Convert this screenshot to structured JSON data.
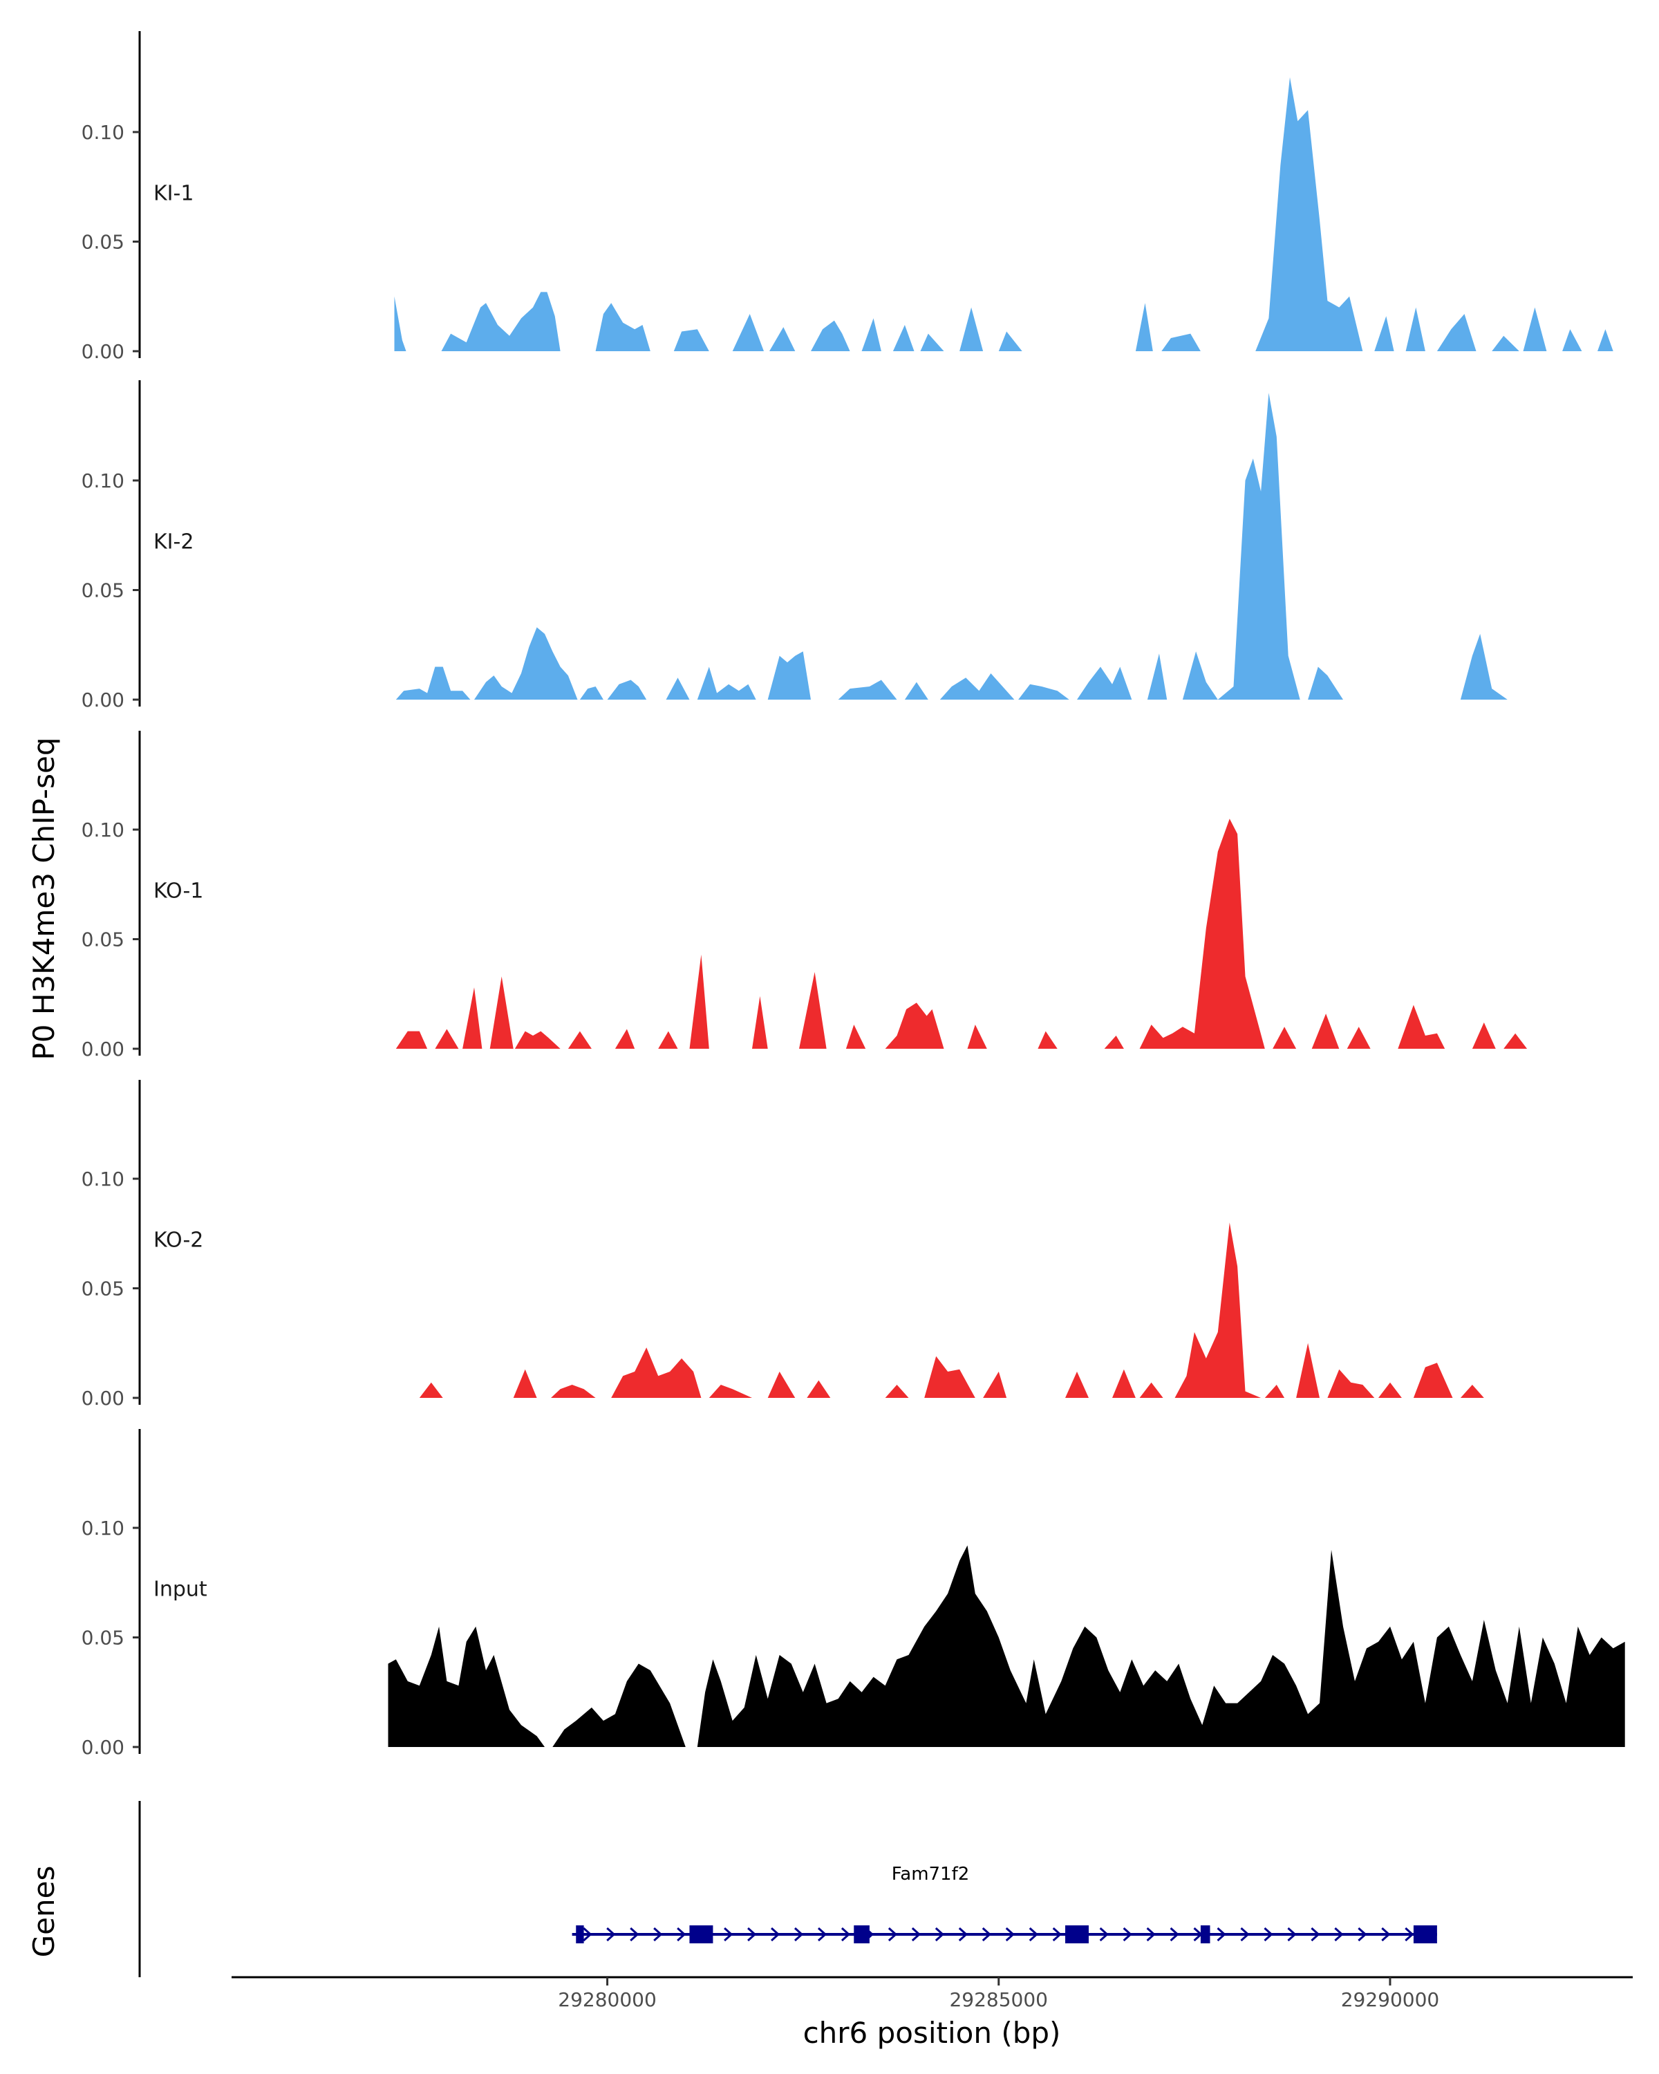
{
  "chart_data": {
    "type": "area",
    "title": "",
    "xlabel": "chr6 position (bp)",
    "ylabel": "P0 H3K4me3 ChIP-seq",
    "genes_label": "Genes",
    "xlim": [
      29275200,
      29293100
    ],
    "ylim": [
      0,
      0.14
    ],
    "x_ticks": [
      29280000,
      29285000,
      29290000
    ],
    "x_tick_labels": [
      "29280000",
      "29285000",
      "29290000"
    ],
    "y_ticks": [
      0.0,
      0.05,
      0.1
    ],
    "y_tick_labels": [
      "0.00",
      "0.05",
      "0.10"
    ],
    "tracks": [
      {
        "name": "KI-1",
        "color": "#5DADEC",
        "peaks": [
          [
            29277280,
            0,
            0.025
          ],
          [
            29277380,
            0,
            0.005
          ],
          [
            29277430,
            0,
            0.0
          ],
          [
            29277880,
            0,
            0.0
          ],
          [
            29278000,
            0,
            0.008
          ],
          [
            29278200,
            0,
            0.004
          ],
          [
            29278380,
            0,
            0.02
          ],
          [
            29278450,
            0,
            0.022
          ],
          [
            29278600,
            0,
            0.012
          ],
          [
            29278750,
            0,
            0.007
          ],
          [
            29278900,
            0,
            0.015
          ],
          [
            29279050,
            0,
            0.02
          ],
          [
            29279150,
            0,
            0.027
          ],
          [
            29279230,
            0,
            0.027
          ],
          [
            29279330,
            0,
            0.016
          ],
          [
            29279400,
            0,
            0.0
          ],
          [
            29279850,
            0,
            0.0
          ],
          [
            29279950,
            0,
            0.017
          ],
          [
            29280050,
            0,
            0.022
          ],
          [
            29280200,
            0,
            0.013
          ],
          [
            29280350,
            0,
            0.01
          ],
          [
            29280450,
            0,
            0.012
          ],
          [
            29280550,
            0,
            0.0
          ],
          [
            29280850,
            0,
            0.0
          ],
          [
            29280950,
            0,
            0.009
          ],
          [
            29281150,
            0,
            0.01
          ],
          [
            29281300,
            0,
            0.0
          ],
          [
            29281600,
            0,
            0.0
          ],
          [
            29281820,
            0,
            0.017
          ],
          [
            29282000,
            0,
            0.0
          ],
          [
            29282070,
            0,
            0.0
          ],
          [
            29282250,
            0,
            0.011
          ],
          [
            29282400,
            0,
            0.0
          ],
          [
            29282600,
            0,
            0.0
          ],
          [
            29282750,
            0,
            0.01
          ],
          [
            29282900,
            0,
            0.014
          ],
          [
            29283000,
            0,
            0.008
          ],
          [
            29283100,
            0,
            0.0
          ],
          [
            29283250,
            0,
            0.0
          ],
          [
            29283400,
            0,
            0.015
          ],
          [
            29283500,
            0,
            0.0
          ],
          [
            29283650,
            0,
            0.0
          ],
          [
            29283800,
            0,
            0.012
          ],
          [
            29283920,
            0,
            0.0
          ],
          [
            29284000,
            0,
            0.0
          ],
          [
            29284100,
            0,
            0.008
          ],
          [
            29284300,
            0,
            0.0
          ],
          [
            29284500,
            0,
            0.0
          ],
          [
            29284650,
            0,
            0.02
          ],
          [
            29284800,
            0,
            0.0
          ],
          [
            29285000,
            0,
            0.0
          ],
          [
            29285100,
            0,
            0.009
          ],
          [
            29285300,
            0,
            0.0
          ],
          [
            29286750,
            0,
            0.0
          ],
          [
            29286870,
            0,
            0.022
          ],
          [
            29286970,
            0,
            0.0
          ],
          [
            29287080,
            0,
            0.0
          ],
          [
            29287200,
            0,
            0.006
          ],
          [
            29287450,
            0,
            0.008
          ],
          [
            29287580,
            0,
            0.0
          ],
          [
            29288280,
            0,
            0.0
          ],
          [
            29288450,
            0,
            0.015
          ],
          [
            29288600,
            0,
            0.085
          ],
          [
            29288720,
            0,
            0.125
          ],
          [
            29288820,
            0,
            0.105
          ],
          [
            29288950,
            0,
            0.11
          ],
          [
            29289100,
            0,
            0.06
          ],
          [
            29289200,
            0,
            0.023
          ],
          [
            29289350,
            0,
            0.02
          ],
          [
            29289480,
            0,
            0.025
          ],
          [
            29289650,
            0,
            0.0
          ],
          [
            29289800,
            0,
            0.0
          ],
          [
            29289950,
            0,
            0.016
          ],
          [
            29290050,
            0,
            0.0
          ],
          [
            29290200,
            0,
            0.0
          ],
          [
            29290330,
            0,
            0.02
          ],
          [
            29290450,
            0,
            0.0
          ],
          [
            29290600,
            0,
            0.0
          ],
          [
            29290780,
            0,
            0.01
          ],
          [
            29290950,
            0,
            0.017
          ],
          [
            29291100,
            0,
            0.0
          ],
          [
            29291300,
            0,
            0.0
          ],
          [
            29291450,
            0,
            0.007
          ],
          [
            29291650,
            0,
            0.0
          ],
          [
            29291700,
            0,
            0.0
          ],
          [
            29291850,
            0,
            0.02
          ],
          [
            29292000,
            0,
            0.0
          ],
          [
            29292200,
            0,
            0.0
          ],
          [
            29292300,
            0,
            0.01
          ],
          [
            29292450,
            0,
            0.0
          ],
          [
            29292650,
            0,
            0.0
          ],
          [
            29292750,
            0,
            0.01
          ],
          [
            29292850,
            0,
            0.0
          ]
        ]
      },
      {
        "name": "KI-2",
        "color": "#5DADEC",
        "peaks": []
      },
      {
        "name": "KO-1",
        "color": "#EE2B2D",
        "peaks": []
      },
      {
        "name": "KO-2",
        "color": "#EE2B2D",
        "peaks": []
      },
      {
        "name": "Input",
        "color": "#000000",
        "peaks": []
      }
    ],
    "gene": {
      "name": "Fam71f2",
      "start": 29279550,
      "end": 29290600,
      "strand": "+",
      "color": "#00008B",
      "exons": [
        [
          29279600,
          29279700
        ],
        [
          29281050,
          29281350
        ],
        [
          29283150,
          29283350
        ],
        [
          29285850,
          29286150
        ],
        [
          29287580,
          29287700
        ],
        [
          29290300,
          29290600
        ]
      ]
    }
  }
}
